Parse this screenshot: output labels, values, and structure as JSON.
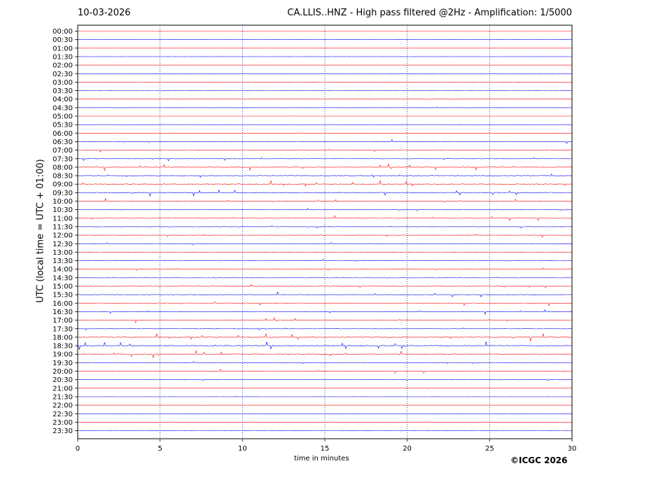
{
  "header": {
    "date": "10-03-2026",
    "title": "CA.LLIS..HNZ - High pass filtered @2Hz - Amplification: 1/5000"
  },
  "copyright": "©ICGC 2026",
  "colors": {
    "even_rows": "#ff0000",
    "odd_rows": "#0000ff",
    "grid": "#000080"
  },
  "chart_data": {
    "type": "line",
    "subtype": "helicorder",
    "xlabel": "time in minutes",
    "ylabel": "UTC (local time = UTC + 01:00)",
    "xlim": [
      0,
      30
    ],
    "xticks": [
      0,
      5,
      10,
      15,
      20,
      25,
      30
    ],
    "vertical_gridlines": [
      5,
      10,
      15,
      20,
      25
    ],
    "grid": "dotted vertical",
    "row_labels": [
      "00:00",
      "00:30",
      "01:00",
      "01:30",
      "02:00",
      "02:30",
      "03:00",
      "03:30",
      "04:00",
      "04:30",
      "05:00",
      "05:30",
      "06:00",
      "06:30",
      "07:00",
      "07:30",
      "08:00",
      "08:30",
      "09:00",
      "09:30",
      "10:00",
      "10:30",
      "11:00",
      "11:30",
      "12:00",
      "12:30",
      "13:00",
      "13:30",
      "14:00",
      "14:30",
      "15:00",
      "15:30",
      "16:00",
      "16:30",
      "17:00",
      "17:30",
      "18:00",
      "18:30",
      "19:00",
      "19:30",
      "20:00",
      "20:30",
      "21:00",
      "21:30",
      "22:00",
      "22:30",
      "23:00",
      "23:30"
    ],
    "row_activity": [
      0.1,
      0.1,
      0.1,
      0.1,
      0.1,
      0.1,
      0.15,
      0.1,
      0.15,
      0.2,
      0.1,
      0.15,
      0.3,
      0.5,
      0.5,
      0.6,
      0.8,
      0.7,
      1.0,
      0.8,
      0.7,
      0.6,
      0.6,
      0.5,
      0.5,
      0.3,
      0.3,
      0.4,
      0.3,
      0.4,
      0.7,
      0.6,
      0.7,
      0.6,
      0.6,
      0.6,
      1.0,
      1.0,
      1.0,
      0.6,
      0.5,
      0.3,
      0.1,
      0.1,
      0.1,
      0.1,
      0.1,
      0.1
    ],
    "row_data_end_minutes": [
      30,
      30,
      30,
      30,
      30,
      30,
      30,
      30,
      30,
      30,
      30,
      30,
      30,
      30,
      30,
      30,
      30,
      30,
      30,
      30,
      30,
      30,
      30,
      30,
      30,
      30,
      30,
      30,
      30,
      30,
      30,
      30,
      30,
      30,
      30,
      30,
      30,
      30,
      30,
      30,
      30,
      30,
      30,
      30,
      30,
      30,
      30,
      30
    ]
  }
}
